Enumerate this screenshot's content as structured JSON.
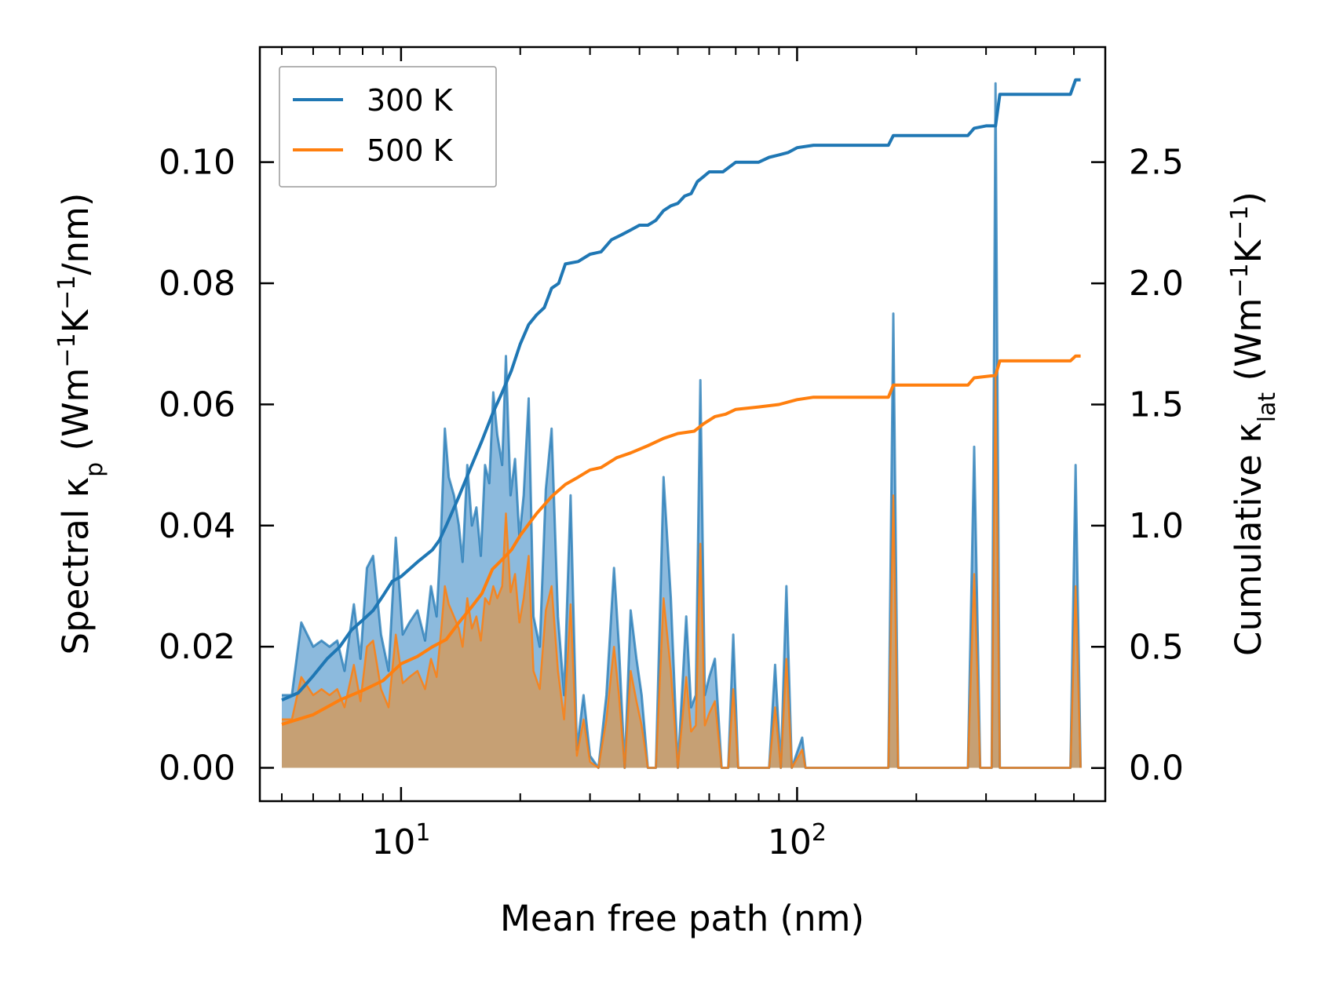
{
  "chart_data": {
    "type": "line",
    "title": "",
    "xlabel": "Mean free path (nm)",
    "ylabel_left": {
      "main": "Spectral κ",
      "sub": "p",
      "unit_open": " (Wm",
      "sup1": "−1",
      "mid": "K",
      "sup2": "−1",
      "unit_close": "/nm)"
    },
    "ylabel_right": {
      "main": "Cumulative κ",
      "sub": "lat",
      "unit_open": " (Wm",
      "sup1": "−1",
      "mid": "K",
      "sup2": "−1",
      "unit_close": ")"
    },
    "xscale": "log",
    "xlim": [
      4.4,
      600
    ],
    "ylim_left": [
      -0.0055,
      0.119
    ],
    "ylim_right": [
      -0.137,
      2.975
    ],
    "x_ticks": [
      {
        "value": 10,
        "base": "10",
        "exp": "1"
      },
      {
        "value": 100,
        "base": "10",
        "exp": "2"
      }
    ],
    "y_ticks_left": [
      "0.00",
      "0.02",
      "0.04",
      "0.06",
      "0.08",
      "0.10"
    ],
    "y_ticks_right": [
      "0.0",
      "0.5",
      "1.0",
      "1.5",
      "2.0",
      "2.5"
    ],
    "legend": {
      "placement": "upper-left",
      "entries": [
        {
          "label": "300 K",
          "color": "#1f77b4"
        },
        {
          "label": "500 K",
          "color": "#ff7f0e"
        }
      ]
    },
    "colors": {
      "c300": "#1f77b4",
      "c500": "#ff7f0e",
      "fill300": "#7fb2d9",
      "fill500": "#c99e6e"
    },
    "spectral_300K": [
      [
        5.0,
        0.012
      ],
      [
        5.3,
        0.012
      ],
      [
        5.6,
        0.024
      ],
      [
        6.0,
        0.02
      ],
      [
        6.3,
        0.021
      ],
      [
        6.6,
        0.02
      ],
      [
        6.9,
        0.021
      ],
      [
        7.2,
        0.016
      ],
      [
        7.6,
        0.027
      ],
      [
        7.9,
        0.018
      ],
      [
        8.2,
        0.033
      ],
      [
        8.5,
        0.035
      ],
      [
        8.9,
        0.022
      ],
      [
        9.3,
        0.016
      ],
      [
        9.7,
        0.038
      ],
      [
        10.1,
        0.022
      ],
      [
        10.5,
        0.024
      ],
      [
        11.0,
        0.026
      ],
      [
        11.5,
        0.021
      ],
      [
        11.9,
        0.03
      ],
      [
        12.3,
        0.025
      ],
      [
        12.6,
        0.038
      ],
      [
        12.9,
        0.056
      ],
      [
        13.2,
        0.048
      ],
      [
        13.6,
        0.045
      ],
      [
        14.0,
        0.04
      ],
      [
        14.3,
        0.034
      ],
      [
        14.7,
        0.05
      ],
      [
        15.1,
        0.04
      ],
      [
        15.5,
        0.043
      ],
      [
        15.9,
        0.035
      ],
      [
        16.3,
        0.05
      ],
      [
        16.7,
        0.047
      ],
      [
        17.1,
        0.062
      ],
      [
        17.5,
        0.055
      ],
      [
        18.0,
        0.05
      ],
      [
        18.4,
        0.068
      ],
      [
        18.9,
        0.045
      ],
      [
        19.4,
        0.051
      ],
      [
        19.9,
        0.038
      ],
      [
        20.4,
        0.045
      ],
      [
        21.0,
        0.061
      ],
      [
        21.6,
        0.025
      ],
      [
        22.4,
        0.02
      ],
      [
        23.2,
        0.046
      ],
      [
        24.0,
        0.056
      ],
      [
        24.9,
        0.025
      ],
      [
        25.8,
        0.012
      ],
      [
        26.8,
        0.045
      ],
      [
        27.8,
        0.003
      ],
      [
        28.9,
        0.012
      ],
      [
        30.0,
        0.002
      ],
      [
        31.5,
        0.0
      ],
      [
        33.0,
        0.012
      ],
      [
        34.5,
        0.033
      ],
      [
        35.5,
        0.02
      ],
      [
        36.7,
        0.0
      ],
      [
        38.0,
        0.026
      ],
      [
        39.3,
        0.018
      ],
      [
        40.5,
        0.012
      ],
      [
        42.0,
        0.0
      ],
      [
        44.0,
        0.0
      ],
      [
        46.0,
        0.048
      ],
      [
        48.0,
        0.028
      ],
      [
        50.0,
        0.0
      ],
      [
        52.5,
        0.025
      ],
      [
        54.0,
        0.01
      ],
      [
        55.5,
        0.012
      ],
      [
        57.0,
        0.064
      ],
      [
        58.5,
        0.012
      ],
      [
        60.0,
        0.015
      ],
      [
        62.0,
        0.018
      ],
      [
        64.5,
        0.0
      ],
      [
        67.0,
        0.0
      ],
      [
        69.0,
        0.022
      ],
      [
        71.0,
        0.0
      ],
      [
        74.0,
        0.0
      ],
      [
        77.0,
        0.0
      ],
      [
        85.0,
        0.0
      ],
      [
        88.0,
        0.017
      ],
      [
        91.0,
        0.0
      ],
      [
        94.0,
        0.03
      ],
      [
        97.0,
        0.0
      ],
      [
        103.0,
        0.005
      ],
      [
        105.0,
        0.0
      ],
      [
        120.0,
        0.0
      ],
      [
        170.0,
        0.0
      ],
      [
        175.0,
        0.075
      ],
      [
        180.0,
        0.0
      ],
      [
        270.0,
        0.0
      ],
      [
        280.0,
        0.053
      ],
      [
        290.0,
        0.0
      ],
      [
        310.0,
        0.0
      ],
      [
        317.0,
        0.113
      ],
      [
        325.0,
        0.0
      ],
      [
        490.0,
        0.0
      ],
      [
        505.0,
        0.05
      ],
      [
        520.0,
        0.0
      ]
    ],
    "spectral_500K": [
      [
        5.0,
        0.008
      ],
      [
        5.3,
        0.008
      ],
      [
        5.6,
        0.015
      ],
      [
        6.0,
        0.012
      ],
      [
        6.3,
        0.013
      ],
      [
        6.6,
        0.012
      ],
      [
        6.9,
        0.013
      ],
      [
        7.2,
        0.01
      ],
      [
        7.6,
        0.017
      ],
      [
        7.9,
        0.011
      ],
      [
        8.2,
        0.02
      ],
      [
        8.5,
        0.021
      ],
      [
        8.9,
        0.013
      ],
      [
        9.3,
        0.01
      ],
      [
        9.7,
        0.022
      ],
      [
        10.1,
        0.014
      ],
      [
        10.5,
        0.015
      ],
      [
        11.0,
        0.016
      ],
      [
        11.5,
        0.013
      ],
      [
        11.9,
        0.018
      ],
      [
        12.3,
        0.015
      ],
      [
        12.6,
        0.022
      ],
      [
        12.9,
        0.03
      ],
      [
        13.2,
        0.027
      ],
      [
        13.6,
        0.025
      ],
      [
        14.0,
        0.023
      ],
      [
        14.3,
        0.02
      ],
      [
        14.7,
        0.028
      ],
      [
        15.1,
        0.023
      ],
      [
        15.5,
        0.025
      ],
      [
        15.9,
        0.021
      ],
      [
        16.3,
        0.028
      ],
      [
        16.7,
        0.027
      ],
      [
        17.1,
        0.03
      ],
      [
        17.5,
        0.028
      ],
      [
        18.0,
        0.03
      ],
      [
        18.4,
        0.042
      ],
      [
        18.9,
        0.029
      ],
      [
        19.4,
        0.032
      ],
      [
        19.9,
        0.024
      ],
      [
        20.4,
        0.028
      ],
      [
        21.0,
        0.035
      ],
      [
        21.6,
        0.016
      ],
      [
        22.4,
        0.013
      ],
      [
        23.2,
        0.026
      ],
      [
        24.0,
        0.03
      ],
      [
        24.9,
        0.016
      ],
      [
        25.8,
        0.008
      ],
      [
        26.8,
        0.027
      ],
      [
        27.8,
        0.002
      ],
      [
        28.9,
        0.008
      ],
      [
        30.0,
        0.001
      ],
      [
        31.5,
        0.0
      ],
      [
        33.0,
        0.008
      ],
      [
        34.5,
        0.02
      ],
      [
        35.5,
        0.012
      ],
      [
        36.7,
        0.0
      ],
      [
        38.0,
        0.016
      ],
      [
        39.3,
        0.011
      ],
      [
        40.5,
        0.007
      ],
      [
        42.0,
        0.0
      ],
      [
        44.0,
        0.0
      ],
      [
        46.0,
        0.028
      ],
      [
        48.0,
        0.016
      ],
      [
        50.0,
        0.0
      ],
      [
        52.5,
        0.015
      ],
      [
        54.0,
        0.006
      ],
      [
        55.5,
        0.007
      ],
      [
        57.0,
        0.037
      ],
      [
        58.5,
        0.007
      ],
      [
        60.0,
        0.009
      ],
      [
        62.0,
        0.011
      ],
      [
        64.5,
        0.0
      ],
      [
        67.0,
        0.0
      ],
      [
        69.0,
        0.013
      ],
      [
        71.0,
        0.0
      ],
      [
        74.0,
        0.0
      ],
      [
        77.0,
        0.0
      ],
      [
        85.0,
        0.0
      ],
      [
        88.0,
        0.01
      ],
      [
        91.0,
        0.0
      ],
      [
        94.0,
        0.018
      ],
      [
        97.0,
        0.0
      ],
      [
        103.0,
        0.003
      ],
      [
        105.0,
        0.0
      ],
      [
        120.0,
        0.0
      ],
      [
        170.0,
        0.0
      ],
      [
        175.0,
        0.045
      ],
      [
        180.0,
        0.0
      ],
      [
        270.0,
        0.0
      ],
      [
        280.0,
        0.032
      ],
      [
        290.0,
        0.0
      ],
      [
        310.0,
        0.0
      ],
      [
        317.0,
        0.065
      ],
      [
        325.0,
        0.0
      ],
      [
        490.0,
        0.0
      ],
      [
        505.0,
        0.03
      ],
      [
        520.0,
        0.0
      ]
    ],
    "cumulative_300K": [
      [
        5.0,
        0.28
      ],
      [
        5.5,
        0.31
      ],
      [
        6.0,
        0.38
      ],
      [
        6.5,
        0.45
      ],
      [
        7.0,
        0.5
      ],
      [
        7.5,
        0.57
      ],
      [
        8.0,
        0.61
      ],
      [
        8.5,
        0.65
      ],
      [
        9.0,
        0.71
      ],
      [
        9.5,
        0.77
      ],
      [
        10.0,
        0.79
      ],
      [
        11.0,
        0.85
      ],
      [
        12.0,
        0.9
      ],
      [
        12.5,
        0.94
      ],
      [
        13.0,
        1.0
      ],
      [
        14.0,
        1.12
      ],
      [
        15.0,
        1.24
      ],
      [
        16.0,
        1.35
      ],
      [
        17.0,
        1.46
      ],
      [
        18.0,
        1.55
      ],
      [
        19.0,
        1.64
      ],
      [
        20.0,
        1.75
      ],
      [
        21.0,
        1.83
      ],
      [
        22.0,
        1.87
      ],
      [
        23.0,
        1.9
      ],
      [
        24.0,
        1.98
      ],
      [
        25.0,
        2.0
      ],
      [
        26.0,
        2.08
      ],
      [
        28.0,
        2.09
      ],
      [
        30.0,
        2.12
      ],
      [
        32.0,
        2.13
      ],
      [
        34.0,
        2.18
      ],
      [
        36.0,
        2.2
      ],
      [
        38.0,
        2.22
      ],
      [
        40.0,
        2.24
      ],
      [
        42.0,
        2.24
      ],
      [
        44.0,
        2.26
      ],
      [
        46.0,
        2.3
      ],
      [
        48.0,
        2.32
      ],
      [
        50.0,
        2.33
      ],
      [
        52.0,
        2.36
      ],
      [
        54.0,
        2.37
      ],
      [
        56.0,
        2.42
      ],
      [
        58.0,
        2.44
      ],
      [
        60.0,
        2.46
      ],
      [
        65.0,
        2.46
      ],
      [
        70.0,
        2.5
      ],
      [
        80.0,
        2.5
      ],
      [
        85.0,
        2.52
      ],
      [
        90.0,
        2.53
      ],
      [
        95.0,
        2.54
      ],
      [
        100.0,
        2.56
      ],
      [
        110.0,
        2.57
      ],
      [
        130.0,
        2.57
      ],
      [
        170.0,
        2.57
      ],
      [
        175.0,
        2.61
      ],
      [
        250.0,
        2.61
      ],
      [
        270.0,
        2.61
      ],
      [
        280.0,
        2.64
      ],
      [
        300.0,
        2.65
      ],
      [
        317.0,
        2.65
      ],
      [
        325.0,
        2.78
      ],
      [
        400.0,
        2.78
      ],
      [
        490.0,
        2.78
      ],
      [
        505.0,
        2.84
      ],
      [
        520.0,
        2.84
      ]
    ],
    "cumulative_500K": [
      [
        5.0,
        0.18
      ],
      [
        6.0,
        0.22
      ],
      [
        7.0,
        0.28
      ],
      [
        8.0,
        0.32
      ],
      [
        9.0,
        0.36
      ],
      [
        10.0,
        0.43
      ],
      [
        11.0,
        0.46
      ],
      [
        12.0,
        0.5
      ],
      [
        13.0,
        0.53
      ],
      [
        14.0,
        0.6
      ],
      [
        15.0,
        0.66
      ],
      [
        16.0,
        0.72
      ],
      [
        17.0,
        0.82
      ],
      [
        18.0,
        0.86
      ],
      [
        19.0,
        0.9
      ],
      [
        20.0,
        0.96
      ],
      [
        22.0,
        1.05
      ],
      [
        24.0,
        1.12
      ],
      [
        26.0,
        1.17
      ],
      [
        28.0,
        1.2
      ],
      [
        30.0,
        1.23
      ],
      [
        32.0,
        1.24
      ],
      [
        35.0,
        1.28
      ],
      [
        38.0,
        1.3
      ],
      [
        42.0,
        1.33
      ],
      [
        46.0,
        1.36
      ],
      [
        50.0,
        1.38
      ],
      [
        55.0,
        1.39
      ],
      [
        58.0,
        1.42
      ],
      [
        62.0,
        1.45
      ],
      [
        66.0,
        1.46
      ],
      [
        70.0,
        1.48
      ],
      [
        80.0,
        1.49
      ],
      [
        90.0,
        1.5
      ],
      [
        100.0,
        1.52
      ],
      [
        110.0,
        1.53
      ],
      [
        170.0,
        1.53
      ],
      [
        175.0,
        1.58
      ],
      [
        270.0,
        1.58
      ],
      [
        280.0,
        1.61
      ],
      [
        317.0,
        1.62
      ],
      [
        325.0,
        1.68
      ],
      [
        490.0,
        1.68
      ],
      [
        505.0,
        1.7
      ],
      [
        520.0,
        1.7
      ]
    ]
  }
}
